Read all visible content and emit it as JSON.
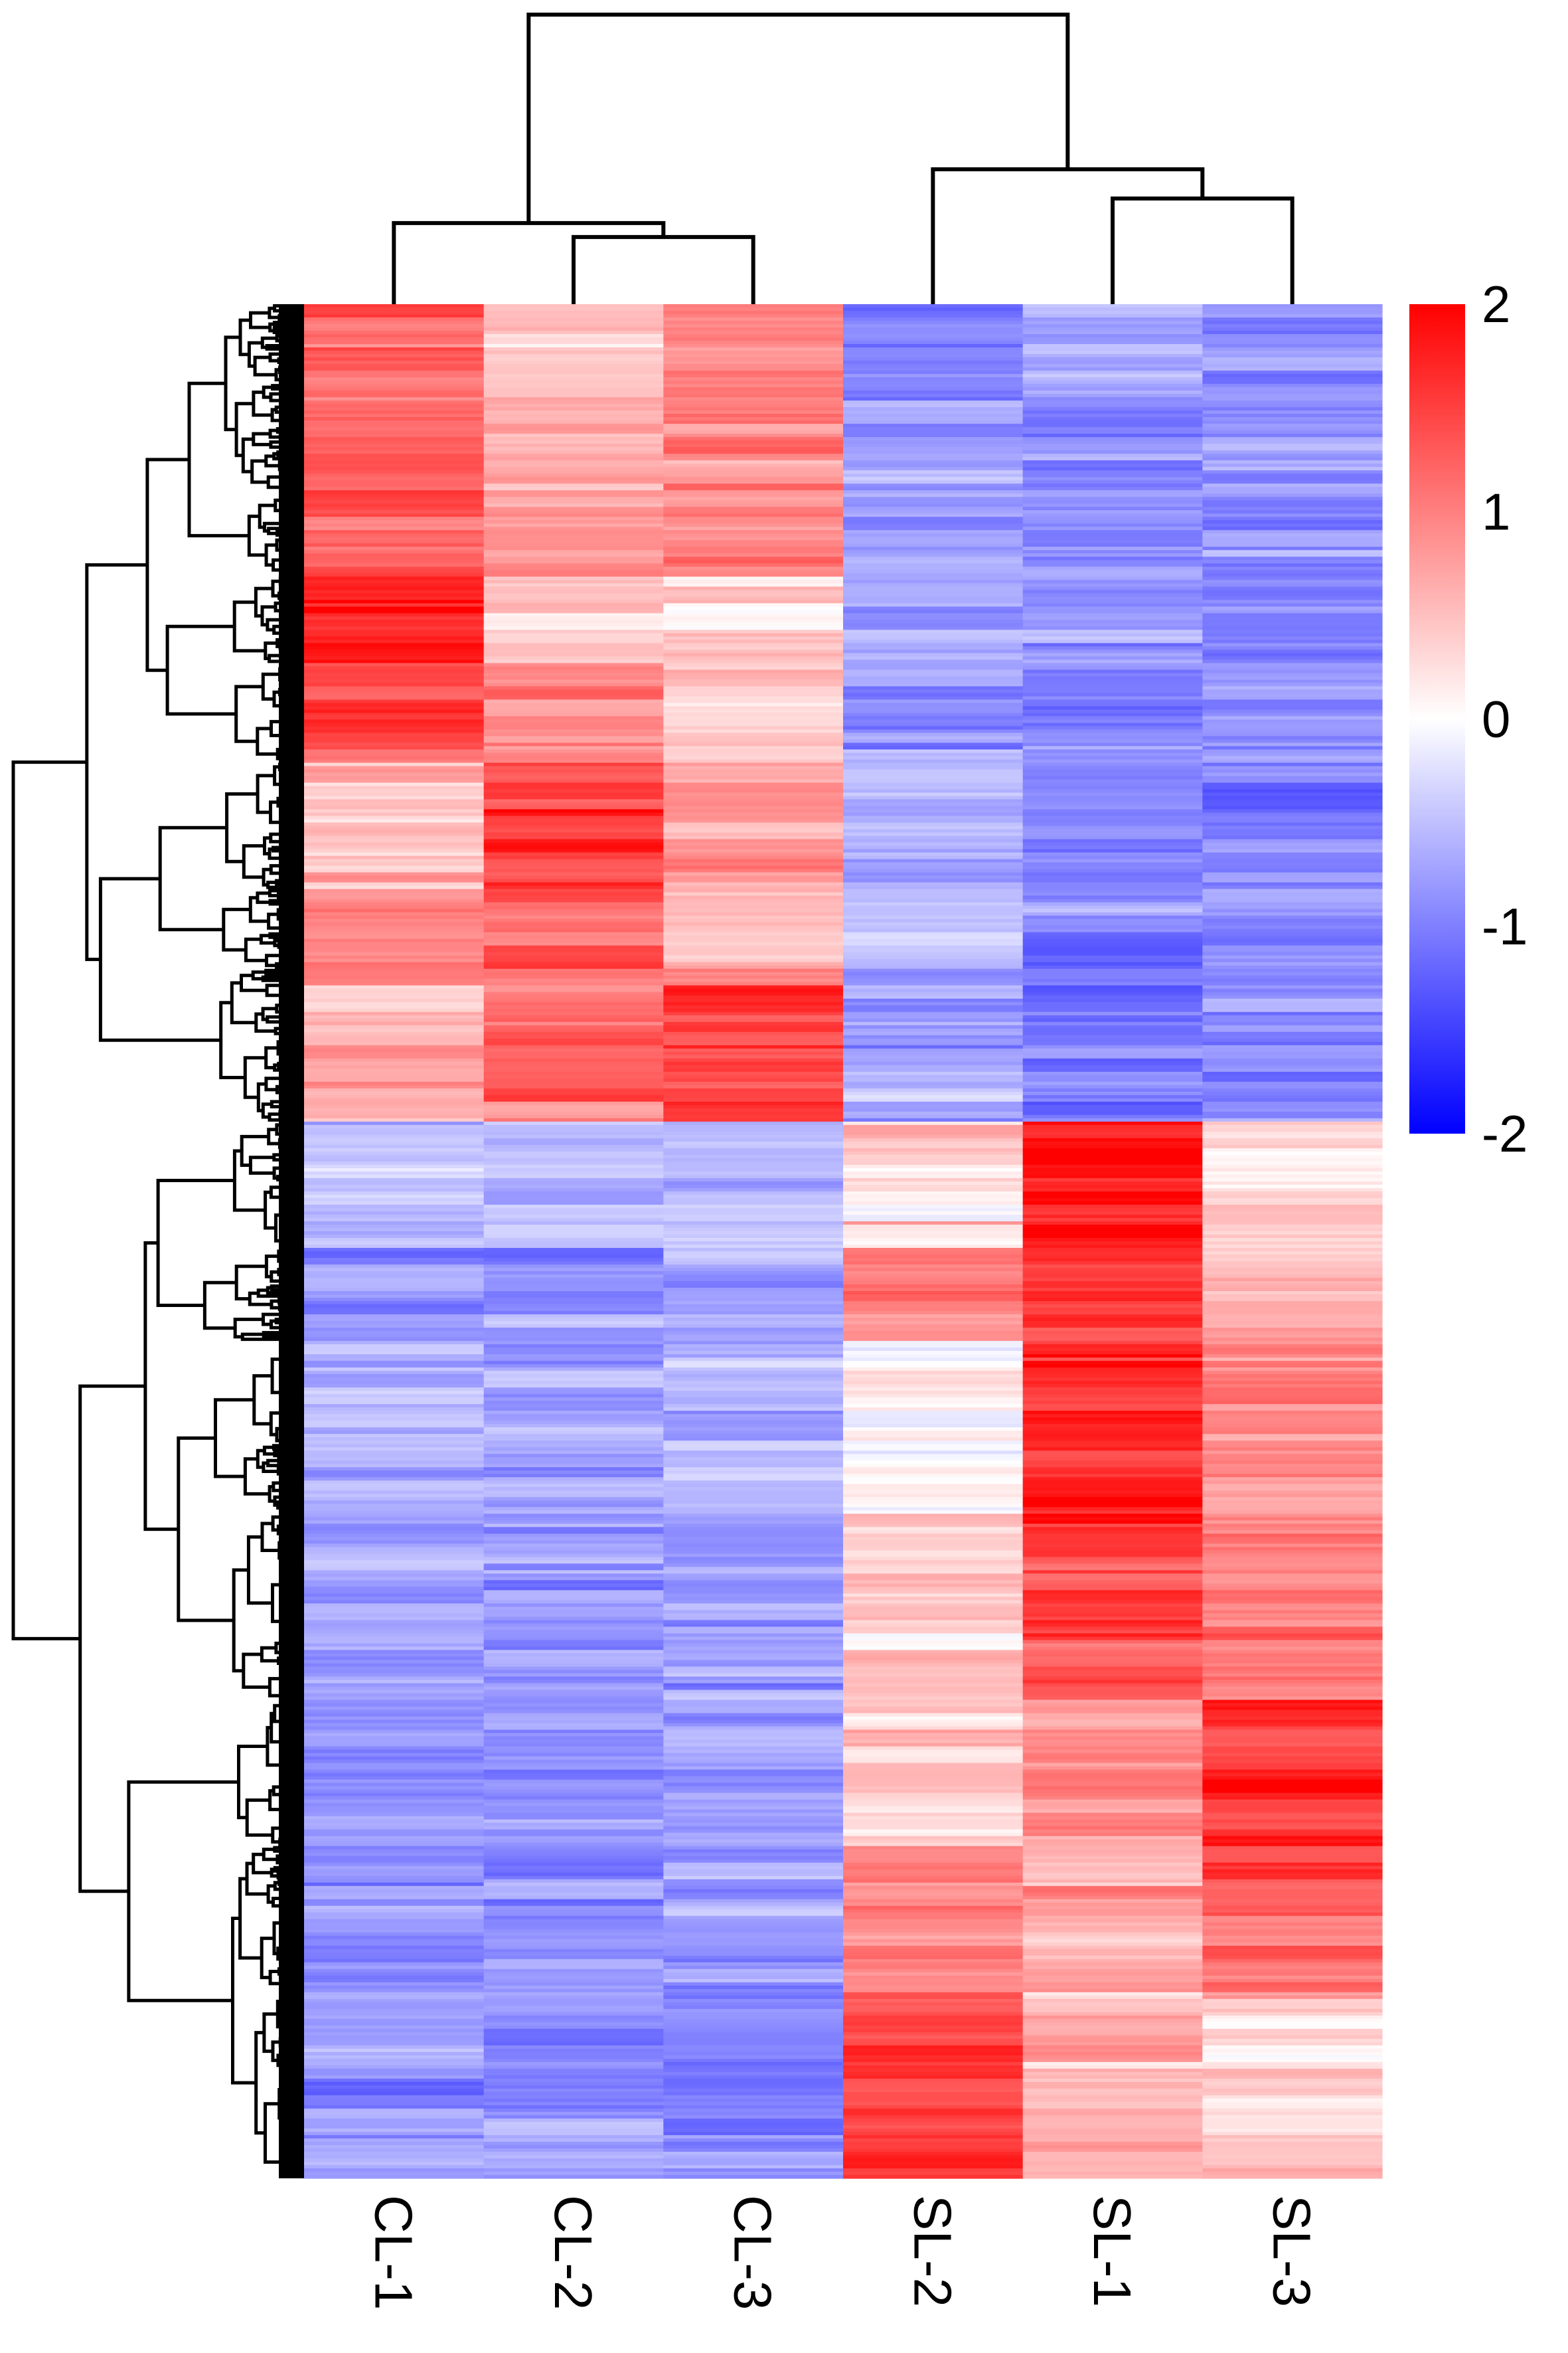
{
  "chart_data": {
    "type": "heatmap",
    "title": "",
    "columns": [
      "CL-1",
      "CL-2",
      "CL-3",
      "SL-2",
      "SL-1",
      "SL-3"
    ],
    "column_dendrogram": {
      "merges": [
        {
          "left": "CL-2",
          "right": "CL-3",
          "height": 2.32,
          "id": "m_cl23"
        },
        {
          "left": "CL-1",
          "right": "m_cl23",
          "height": 2.8,
          "id": "m_cl"
        },
        {
          "left": "SL-1",
          "right": "SL-3",
          "height": 3.65,
          "id": "m_sl13"
        },
        {
          "left": "SL-2",
          "right": "m_sl13",
          "height": 4.66,
          "id": "m_sl"
        },
        {
          "left": "m_cl",
          "right": "m_sl",
          "height": 10,
          "id": "root"
        }
      ],
      "max_height": 10
    },
    "row_blocks": [
      {
        "rows": 20,
        "means": [
          1.3,
          0.4,
          0.8,
          -0.9,
          -0.7,
          -0.8
        ]
      },
      {
        "rows": 38,
        "means": [
          1.2,
          0.6,
          1.0,
          -0.8,
          -0.9,
          -0.9
        ]
      },
      {
        "rows": 24,
        "means": [
          1.1,
          0.8,
          1.0,
          -0.8,
          -0.9,
          -0.9
        ]
      },
      {
        "rows": 26,
        "means": [
          1.8,
          0.4,
          0.3,
          -0.7,
          -0.9,
          -0.9
        ]
      },
      {
        "rows": 30,
        "means": [
          1.4,
          1.0,
          0.5,
          -0.8,
          -0.9,
          -0.8
        ]
      },
      {
        "rows": 38,
        "means": [
          0.5,
          1.5,
          0.9,
          -0.7,
          -0.9,
          -1.0
        ]
      },
      {
        "rows": 24,
        "means": [
          0.9,
          1.2,
          0.5,
          -0.6,
          -1.1,
          -0.9
        ]
      },
      {
        "rows": 46,
        "means": [
          0.7,
          1.2,
          1.4,
          -0.7,
          -1.1,
          -0.9
        ]
      },
      {
        "rows": 38,
        "means": [
          -0.5,
          -0.5,
          -0.6,
          0.3,
          1.8,
          0.3
        ]
      },
      {
        "rows": 28,
        "means": [
          -0.9,
          -0.8,
          -0.8,
          1.1,
          1.5,
          0.6
        ]
      },
      {
        "rows": 52,
        "means": [
          -0.6,
          -0.6,
          -0.6,
          0.0,
          1.7,
          0.9
        ]
      },
      {
        "rows": 56,
        "means": [
          -0.8,
          -0.8,
          -0.8,
          0.4,
          1.5,
          1.0
        ]
      },
      {
        "rows": 44,
        "means": [
          -0.8,
          -0.8,
          -0.8,
          0.4,
          0.9,
          1.6
        ]
      },
      {
        "rows": 46,
        "means": [
          -0.8,
          -0.8,
          -0.8,
          1.0,
          0.6,
          1.2
        ]
      },
      {
        "rows": 54,
        "means": [
          -0.8,
          -0.8,
          -0.9,
          1.5,
          0.6,
          0.4
        ]
      }
    ],
    "row_dendrogram": {
      "max_height": 10,
      "tree": {
        "h": 10,
        "children": [
          {
            "h": 7.47,
            "children": [
              {
                "h": 5.39,
                "children": [
                  {
                    "h": 3.95,
                    "children": [
                      {
                        "blocks": [
                          0,
                          1
                        ]
                      },
                      {
                        "blocks": [
                          2
                        ]
                      }
                    ]
                  },
                  {
                    "h": 4.7,
                    "children": [
                      {
                        "blocks": [
                          3
                        ]
                      },
                      {
                        "blocks": [
                          4
                        ]
                      }
                    ]
                  }
                ]
              },
              {
                "h": 7.0,
                "children": [
                  {
                    "h": 4.95,
                    "children": [
                      {
                        "blocks": [
                          5
                        ]
                      },
                      {
                        "blocks": [
                          6
                        ]
                      }
                    ]
                  },
                  {
                    "h": 5.14,
                    "children": [
                      {
                        "blocks": [
                          7
                        ]
                      }
                    ]
                  }
                ]
              }
            ]
          },
          {
            "h": 7.7,
            "children": [
              {
                "h": 5.46,
                "children": [
                  {
                    "h": 5.02,
                    "children": [
                      {
                        "blocks": [
                          8
                        ]
                      },
                      {
                        "blocks": [
                          9
                        ]
                      }
                    ]
                  },
                  {
                    "h": 4.32,
                    "children": [
                      {
                        "blocks": [
                          10
                        ]
                      },
                      {
                        "blocks": [
                          11
                        ]
                      }
                    ]
                  }
                ]
              },
              {
                "h": 6.03,
                "children": [
                  {
                    "blocks": [
                      12
                    ]
                  },
                  {
                    "blocks": [
                      13,
                      14
                    ]
                  }
                ]
              }
            ]
          }
        ]
      }
    },
    "colorbar": {
      "min": -2,
      "max": 2,
      "ticks": [
        "2",
        "1",
        "0",
        "-1",
        "-2"
      ],
      "tick_values": [
        2,
        1,
        0,
        -1,
        -2
      ],
      "colors": {
        "low": "#0000ff",
        "mid": "#ffffff",
        "high": "#ff0000"
      },
      "placement": "right"
    },
    "xlabel": "",
    "ylabel": ""
  }
}
